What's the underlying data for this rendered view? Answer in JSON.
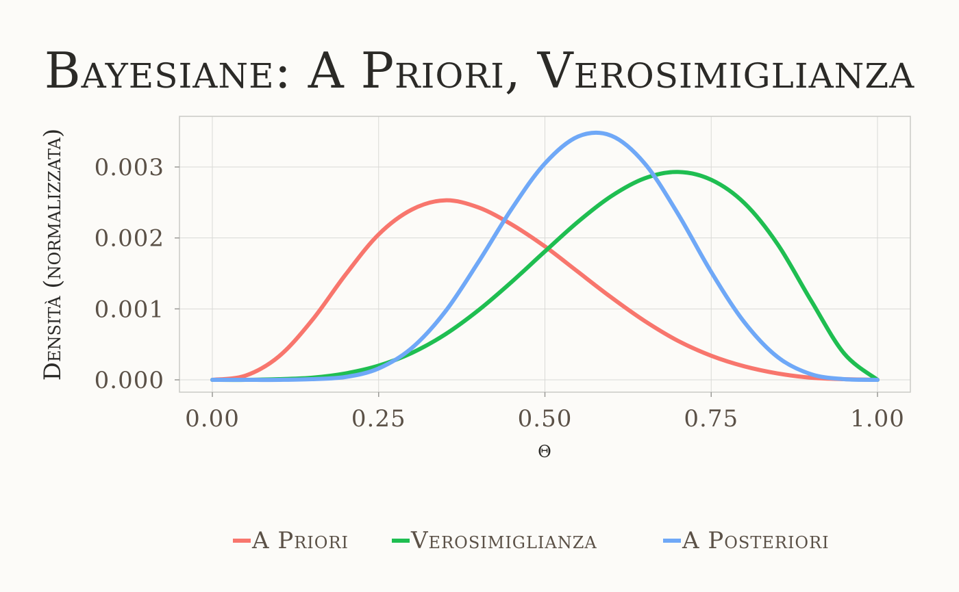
{
  "chart_data": {
    "type": "line",
    "title": "Bayesiane: A Priori, Verosimiglianza",
    "xlabel": "θ",
    "ylabel": "Densità (normalizzata)",
    "xlim": [
      0,
      1
    ],
    "ylim": [
      0,
      0.0036
    ],
    "x_ticks": [
      0,
      0.25,
      0.5,
      0.75,
      1.0
    ],
    "x_tick_labels": [
      "0.00",
      "0.25",
      "0.50",
      "0.75",
      "1.00"
    ],
    "y_ticks": [
      0,
      0.001,
      0.002,
      0.003
    ],
    "y_tick_labels": [
      "0.000",
      "0.001",
      "0.002",
      "0.003"
    ],
    "grid": true,
    "legend_position": "bottom",
    "x": [
      0.0,
      0.05,
      0.1,
      0.15,
      0.2,
      0.25,
      0.3,
      0.35,
      0.4,
      0.45,
      0.5,
      0.55,
      0.6,
      0.65,
      0.7,
      0.75,
      0.8,
      0.85,
      0.9,
      0.95,
      1.0
    ],
    "series": [
      {
        "name": "A Priori",
        "color": "#f8766d",
        "values": [
          0.0,
          6e-05,
          0.00033,
          0.00084,
          0.00148,
          0.00205,
          0.0024,
          0.00253,
          0.00243,
          0.00219,
          0.00188,
          0.00152,
          0.00116,
          0.00083,
          0.00055,
          0.00034,
          0.00019,
          9e-05,
          3e-05,
          1e-05,
          0.0
        ]
      },
      {
        "name": "Verosimiglianza",
        "color": "#1fbe51",
        "values": [
          0.0,
          0.0,
          1e-05,
          3e-05,
          9e-05,
          0.0002,
          0.00038,
          0.00064,
          0.00098,
          0.00138,
          0.00181,
          0.00223,
          0.00259,
          0.00284,
          0.00293,
          0.00282,
          0.00249,
          0.00191,
          0.00112,
          0.00037,
          0.0
        ]
      },
      {
        "name": "A Posteriori",
        "color": "#6fa8f7",
        "values": [
          0.0,
          0.0,
          0.0,
          1e-05,
          4e-05,
          0.00016,
          0.00045,
          0.00096,
          0.00166,
          0.00241,
          0.00305,
          0.00343,
          0.00344,
          0.00305,
          0.00234,
          0.00152,
          0.00081,
          0.00032,
          8e-05,
          1e-05,
          0.0
        ]
      }
    ]
  }
}
